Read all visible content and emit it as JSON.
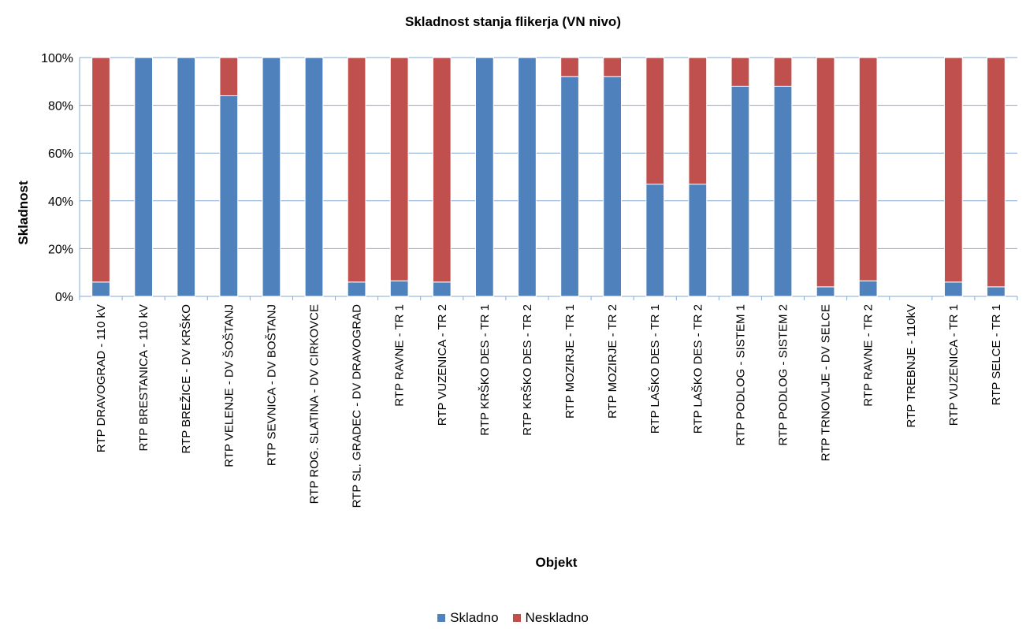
{
  "chart_data": {
    "type": "bar",
    "stacked": true,
    "title": "Skladnost stanja flikerja (VN nivo)",
    "xlabel": "Objekt",
    "ylabel": "Skladnost",
    "ylim": [
      0,
      100
    ],
    "yticks": [
      "0%",
      "20%",
      "40%",
      "60%",
      "80%",
      "100%"
    ],
    "grid": true,
    "legend_position": "bottom",
    "categories": [
      "RTP DRAVOGRAD - 110 kV",
      "RTP BRESTANICA - 110 kV",
      "RTP BREŽICE - DV KRŠKO",
      "RTP VELENJE - DV ŠOŠTANJ",
      "RTP SEVNICA - DV BOŠTANJ",
      "RTP ROG. SLATINA - DV CIRKOVCE",
      "RTP SL. GRADEC - DV DRAVOGRAD",
      "RTP RAVNE - TR 1",
      "RTP VUZENICA - TR 2",
      "RTP KRŠKO DES - TR 1",
      "RTP KRŠKO DES - TR 2",
      "RTP MOZIRJE - TR 1",
      "RTP MOZIRJE - TR 2",
      "RTP LAŠKO DES - TR 1",
      "RTP LAŠKO DES - TR 2",
      "RTP PODLOG - SISTEM 1",
      "RTP PODLOG - SISTEM 2",
      "RTP TRNOVLJE - DV SELCE",
      "RTP RAVNE - TR 2",
      "RTP TREBNJE - 110kV",
      "RTP VUZENICA - TR 1",
      "RTP SELCE - TR 1"
    ],
    "series": [
      {
        "name": "Skladno",
        "color": "#4F81BD",
        "values": [
          6,
          100,
          100,
          84,
          100,
          100,
          6,
          6.5,
          6,
          100,
          100,
          92,
          92,
          47,
          47,
          88,
          88,
          4,
          6.5,
          0,
          6,
          4
        ]
      },
      {
        "name": "Neskladno",
        "color": "#C0504D",
        "values": [
          94,
          0,
          0,
          16,
          0,
          0,
          94,
          93.5,
          94,
          0,
          0,
          8,
          8,
          53,
          53,
          12,
          12,
          96,
          93.5,
          0,
          94,
          96
        ]
      }
    ]
  }
}
